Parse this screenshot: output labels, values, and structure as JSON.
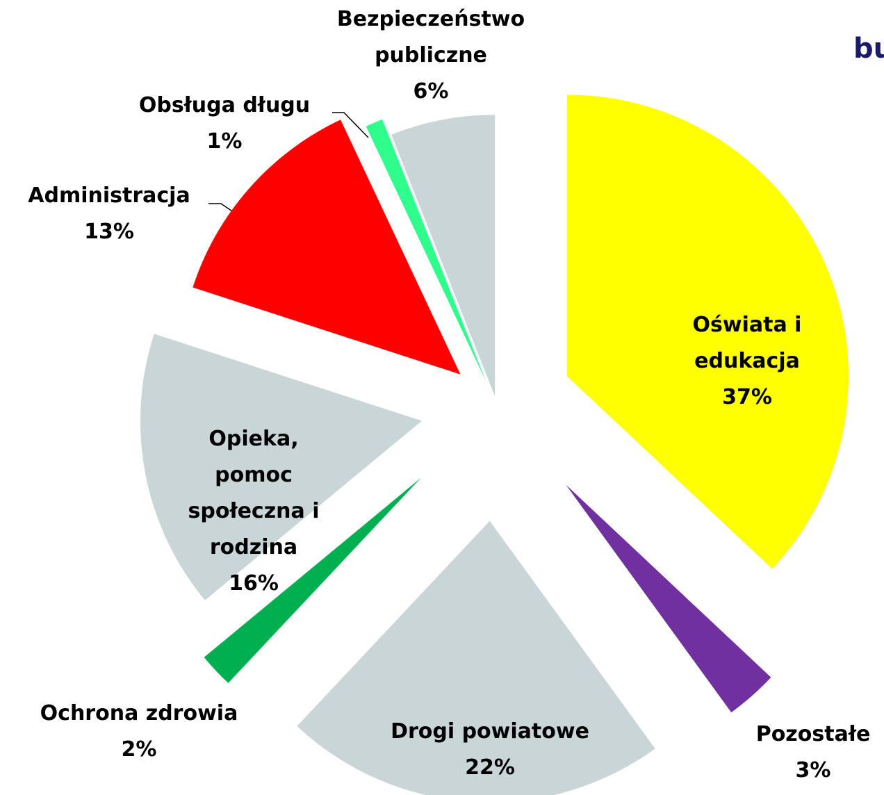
{
  "chart_data": {
    "type": "pie",
    "title": "bu",
    "categories": [
      "Oświata i edukacja",
      "Pozostałe",
      "Drogi powiatowe",
      "Ochrona zdrowia",
      "Opieka, pomoc społeczna i rodzina",
      "Administracja",
      "Obsługa długu",
      "Bezpieczeństwo publiczne"
    ],
    "values": [
      37,
      3,
      22,
      2,
      16,
      13,
      1,
      6
    ],
    "value_labels": [
      "37%",
      "3%",
      "22%",
      "2%",
      "16%",
      "13%",
      "1%",
      "6%"
    ],
    "colors": [
      "#ffff00",
      "#7030a0",
      "#cad5d8",
      "#00b050",
      "#cad5d8",
      "#ff0000",
      "#2eff8c",
      "#cad5d8"
    ]
  }
}
